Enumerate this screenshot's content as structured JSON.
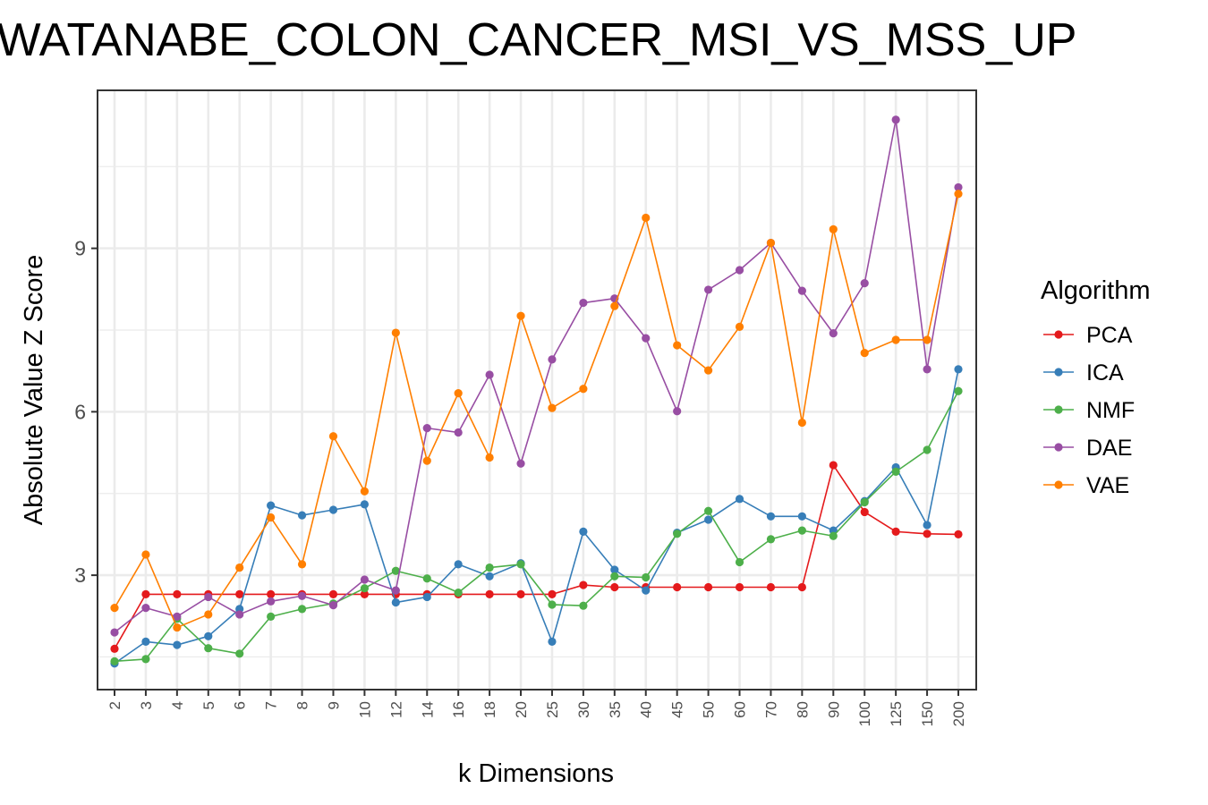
{
  "chart_data": {
    "type": "line",
    "title": "WATANABE_COLON_CANCER_MSI_VS_MSS_UP",
    "xlabel": "k Dimensions",
    "ylabel": "Absolute Value Z Score",
    "categories": [
      "2",
      "3",
      "4",
      "5",
      "6",
      "7",
      "8",
      "9",
      "10",
      "12",
      "14",
      "16",
      "18",
      "20",
      "25",
      "30",
      "35",
      "40",
      "45",
      "50",
      "60",
      "70",
      "80",
      "90",
      "100",
      "125",
      "150",
      "200"
    ],
    "yticks": [
      3,
      6,
      9
    ],
    "ylim": [
      0.9,
      11.9
    ],
    "grid": true,
    "legend": {
      "title": "Algorithm",
      "position": "right"
    },
    "series": [
      {
        "name": "PCA",
        "color": "#E41A1C",
        "values": [
          1.65,
          2.65,
          2.65,
          2.65,
          2.65,
          2.65,
          2.65,
          2.65,
          2.65,
          2.65,
          2.65,
          2.65,
          2.65,
          2.65,
          2.65,
          2.82,
          2.78,
          2.78,
          2.78,
          2.78,
          2.78,
          2.78,
          2.78,
          5.02,
          4.16,
          3.8,
          3.76,
          3.75
        ]
      },
      {
        "name": "ICA",
        "color": "#377EB8",
        "values": [
          1.38,
          1.78,
          1.72,
          1.88,
          2.38,
          4.28,
          4.1,
          4.2,
          4.3,
          2.5,
          2.6,
          3.2,
          2.98,
          3.22,
          1.78,
          3.8,
          3.1,
          2.72,
          3.78,
          4.02,
          4.4,
          4.08,
          4.08,
          3.82,
          4.36,
          4.98,
          3.92,
          6.78
        ]
      },
      {
        "name": "NMF",
        "color": "#4DAF4A",
        "values": [
          1.42,
          1.46,
          2.2,
          1.66,
          1.56,
          2.24,
          2.38,
          2.48,
          2.76,
          3.08,
          2.94,
          2.68,
          3.14,
          3.2,
          2.46,
          2.44,
          2.98,
          2.96,
          3.76,
          4.18,
          3.24,
          3.66,
          3.82,
          3.72,
          4.34,
          4.9,
          5.3,
          6.38
        ]
      },
      {
        "name": "DAE",
        "color": "#984EA3",
        "values": [
          1.95,
          2.4,
          2.24,
          2.6,
          2.28,
          2.52,
          2.62,
          2.45,
          2.92,
          2.72,
          5.7,
          5.62,
          6.68,
          5.05,
          6.96,
          8.0,
          8.08,
          7.35,
          6.01,
          8.24,
          8.6,
          9.1,
          8.22,
          7.44,
          8.36,
          11.36,
          6.78,
          10.12
        ]
      },
      {
        "name": "VAE",
        "color": "#FF7F00",
        "values": [
          2.4,
          3.38,
          2.04,
          2.28,
          3.14,
          4.06,
          3.2,
          5.55,
          4.54,
          7.45,
          5.1,
          6.34,
          5.16,
          7.76,
          6.07,
          6.42,
          7.94,
          9.56,
          7.22,
          6.76,
          7.56,
          9.1,
          5.8,
          9.35,
          7.08,
          7.32,
          7.32,
          10.0
        ]
      }
    ]
  }
}
